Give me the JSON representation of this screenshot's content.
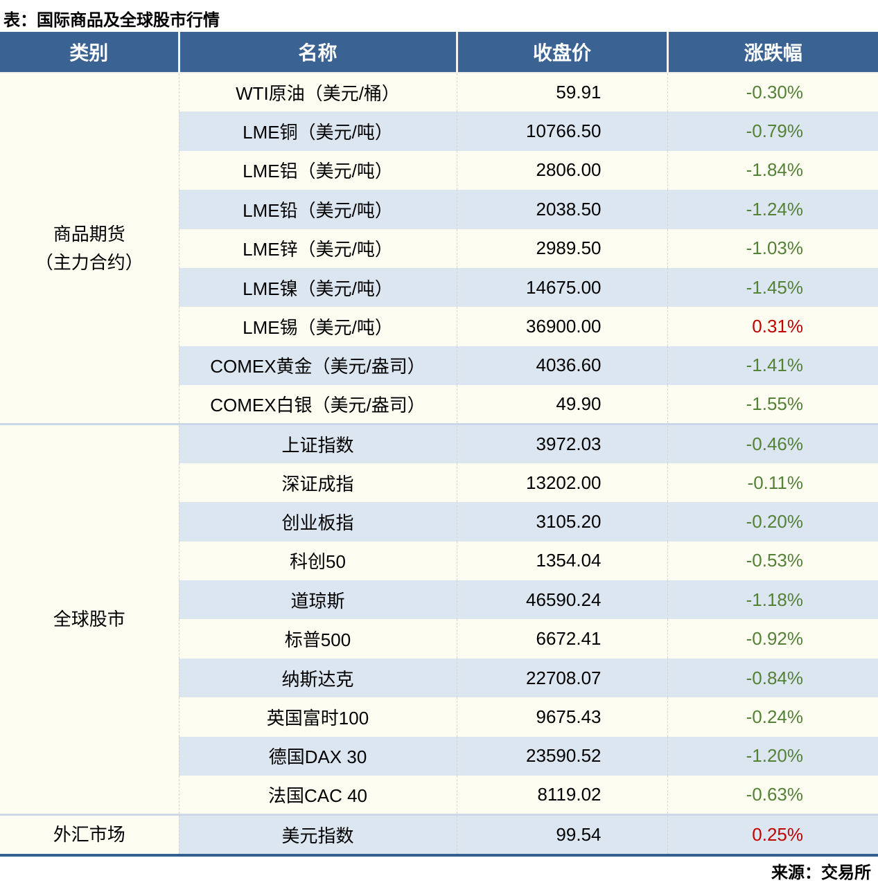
{
  "title": "表：国际商品及全球股市行情",
  "source": "来源：交易所",
  "colors": {
    "header_bg": "#3a6292",
    "header_text": "#ffffff",
    "row_base": "#fdfdf1",
    "row_alt": "#dce6f1",
    "change_down_green": "#538135",
    "change_up_red": "#c00000",
    "bottom_rule": "#34608f"
  },
  "table": {
    "headers": [
      "类别",
      "名称",
      "收盘价",
      "涨跌幅"
    ],
    "groups": [
      {
        "category_lines": [
          "商品期货",
          "（主力合约）"
        ],
        "rows": [
          {
            "name": "WTI原油（美元/桶）",
            "close": "59.91",
            "change": "-0.30%",
            "dir": "down"
          },
          {
            "name": "LME铜（美元/吨）",
            "close": "10766.50",
            "change": "-0.79%",
            "dir": "down"
          },
          {
            "name": "LME铝（美元/吨）",
            "close": "2806.00",
            "change": "-1.84%",
            "dir": "down"
          },
          {
            "name": "LME铅（美元/吨）",
            "close": "2038.50",
            "change": "-1.24%",
            "dir": "down"
          },
          {
            "name": "LME锌（美元/吨）",
            "close": "2989.50",
            "change": "-1.03%",
            "dir": "down"
          },
          {
            "name": "LME镍（美元/吨）",
            "close": "14675.00",
            "change": "-1.45%",
            "dir": "down"
          },
          {
            "name": "LME锡（美元/吨）",
            "close": "36900.00",
            "change": "0.31%",
            "dir": "up"
          },
          {
            "name": "COMEX黄金（美元/盎司）",
            "close": "4036.60",
            "change": "-1.41%",
            "dir": "down"
          },
          {
            "name": "COMEX白银（美元/盎司）",
            "close": "49.90",
            "change": "-1.55%",
            "dir": "down"
          }
        ]
      },
      {
        "category_lines": [
          "全球股市"
        ],
        "rows": [
          {
            "name": "上证指数",
            "close": "3972.03",
            "change": "-0.46%",
            "dir": "down"
          },
          {
            "name": "深证成指",
            "close": "13202.00",
            "change": "-0.11%",
            "dir": "down"
          },
          {
            "name": "创业板指",
            "close": "3105.20",
            "change": "-0.20%",
            "dir": "down"
          },
          {
            "name": "科创50",
            "close": "1354.04",
            "change": "-0.53%",
            "dir": "down"
          },
          {
            "name": "道琼斯",
            "close": "46590.24",
            "change": "-1.18%",
            "dir": "down"
          },
          {
            "name": "标普500",
            "close": "6672.41",
            "change": "-0.92%",
            "dir": "down"
          },
          {
            "name": "纳斯达克",
            "close": "22708.07",
            "change": "-0.84%",
            "dir": "down"
          },
          {
            "name": "英国富时100",
            "close": "9675.43",
            "change": "-0.24%",
            "dir": "down"
          },
          {
            "name": "德国DAX 30",
            "close": "23590.52",
            "change": "-1.20%",
            "dir": "down"
          },
          {
            "name": "法国CAC 40",
            "close": "8119.02",
            "change": "-0.63%",
            "dir": "down"
          }
        ]
      },
      {
        "category_lines": [
          "外汇市场"
        ],
        "rows": [
          {
            "name": "美元指数",
            "close": "99.54",
            "change": "0.25%",
            "dir": "up"
          }
        ]
      }
    ]
  }
}
